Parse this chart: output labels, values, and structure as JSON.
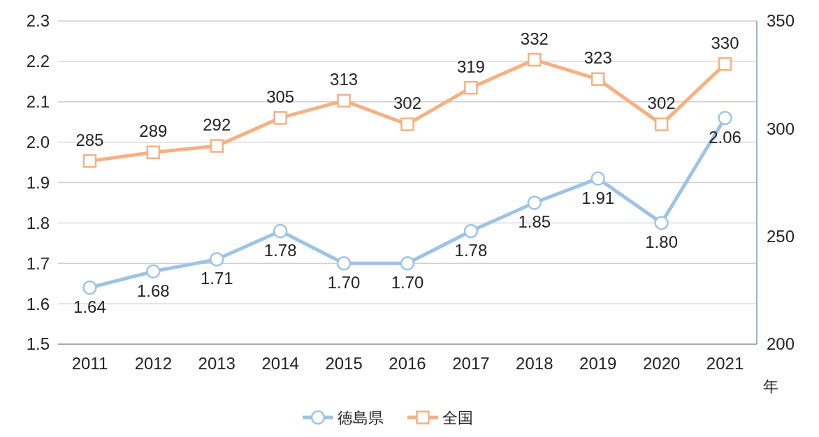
{
  "chart_data": {
    "type": "line",
    "xlabel": "年",
    "categories": [
      "2011",
      "2012",
      "2013",
      "2014",
      "2015",
      "2016",
      "2017",
      "2018",
      "2019",
      "2020",
      "2021"
    ],
    "ylim": [
      1.5,
      2.3
    ],
    "yticks": [
      {
        "value": 1.5,
        "label": "1.5"
      },
      {
        "value": 1.6,
        "label": "1.6"
      },
      {
        "value": 1.7,
        "label": "1.7"
      },
      {
        "value": 1.8,
        "label": "1.8"
      },
      {
        "value": 1.9,
        "label": "1.9"
      },
      {
        "value": 2.0,
        "label": "2.0"
      },
      {
        "value": 2.1,
        "label": "2.1"
      },
      {
        "value": 2.2,
        "label": "2.2"
      },
      {
        "value": 2.3,
        "label": "2.3"
      }
    ],
    "y2lim": [
      200,
      350
    ],
    "y2ticks": [
      200,
      250,
      300,
      350
    ],
    "grid": "y",
    "legend": "bottom",
    "series": [
      {
        "name": "徳島県",
        "color": "#9dc3e6",
        "marker": "circle",
        "values": [
          1.64,
          1.68,
          1.71,
          1.78,
          1.7,
          1.7,
          1.78,
          1.85,
          1.91,
          1.8,
          2.06
        ],
        "value_labels": [
          "1.64",
          "1.68",
          "1.71",
          "1.78",
          "1.70",
          "1.70",
          "1.78",
          "1.85",
          "1.91",
          "1.80",
          "2.06"
        ]
      },
      {
        "name": "全国",
        "color": "#f4b183",
        "marker": "square",
        "axis": "y2",
        "values": [
          285,
          289,
          292,
          305,
          313,
          302,
          319,
          332,
          323,
          302,
          330
        ],
        "value_labels": [
          "285",
          "289",
          "292",
          "305",
          "313",
          "302",
          "319",
          "332",
          "323",
          "302",
          "330"
        ]
      }
    ]
  }
}
